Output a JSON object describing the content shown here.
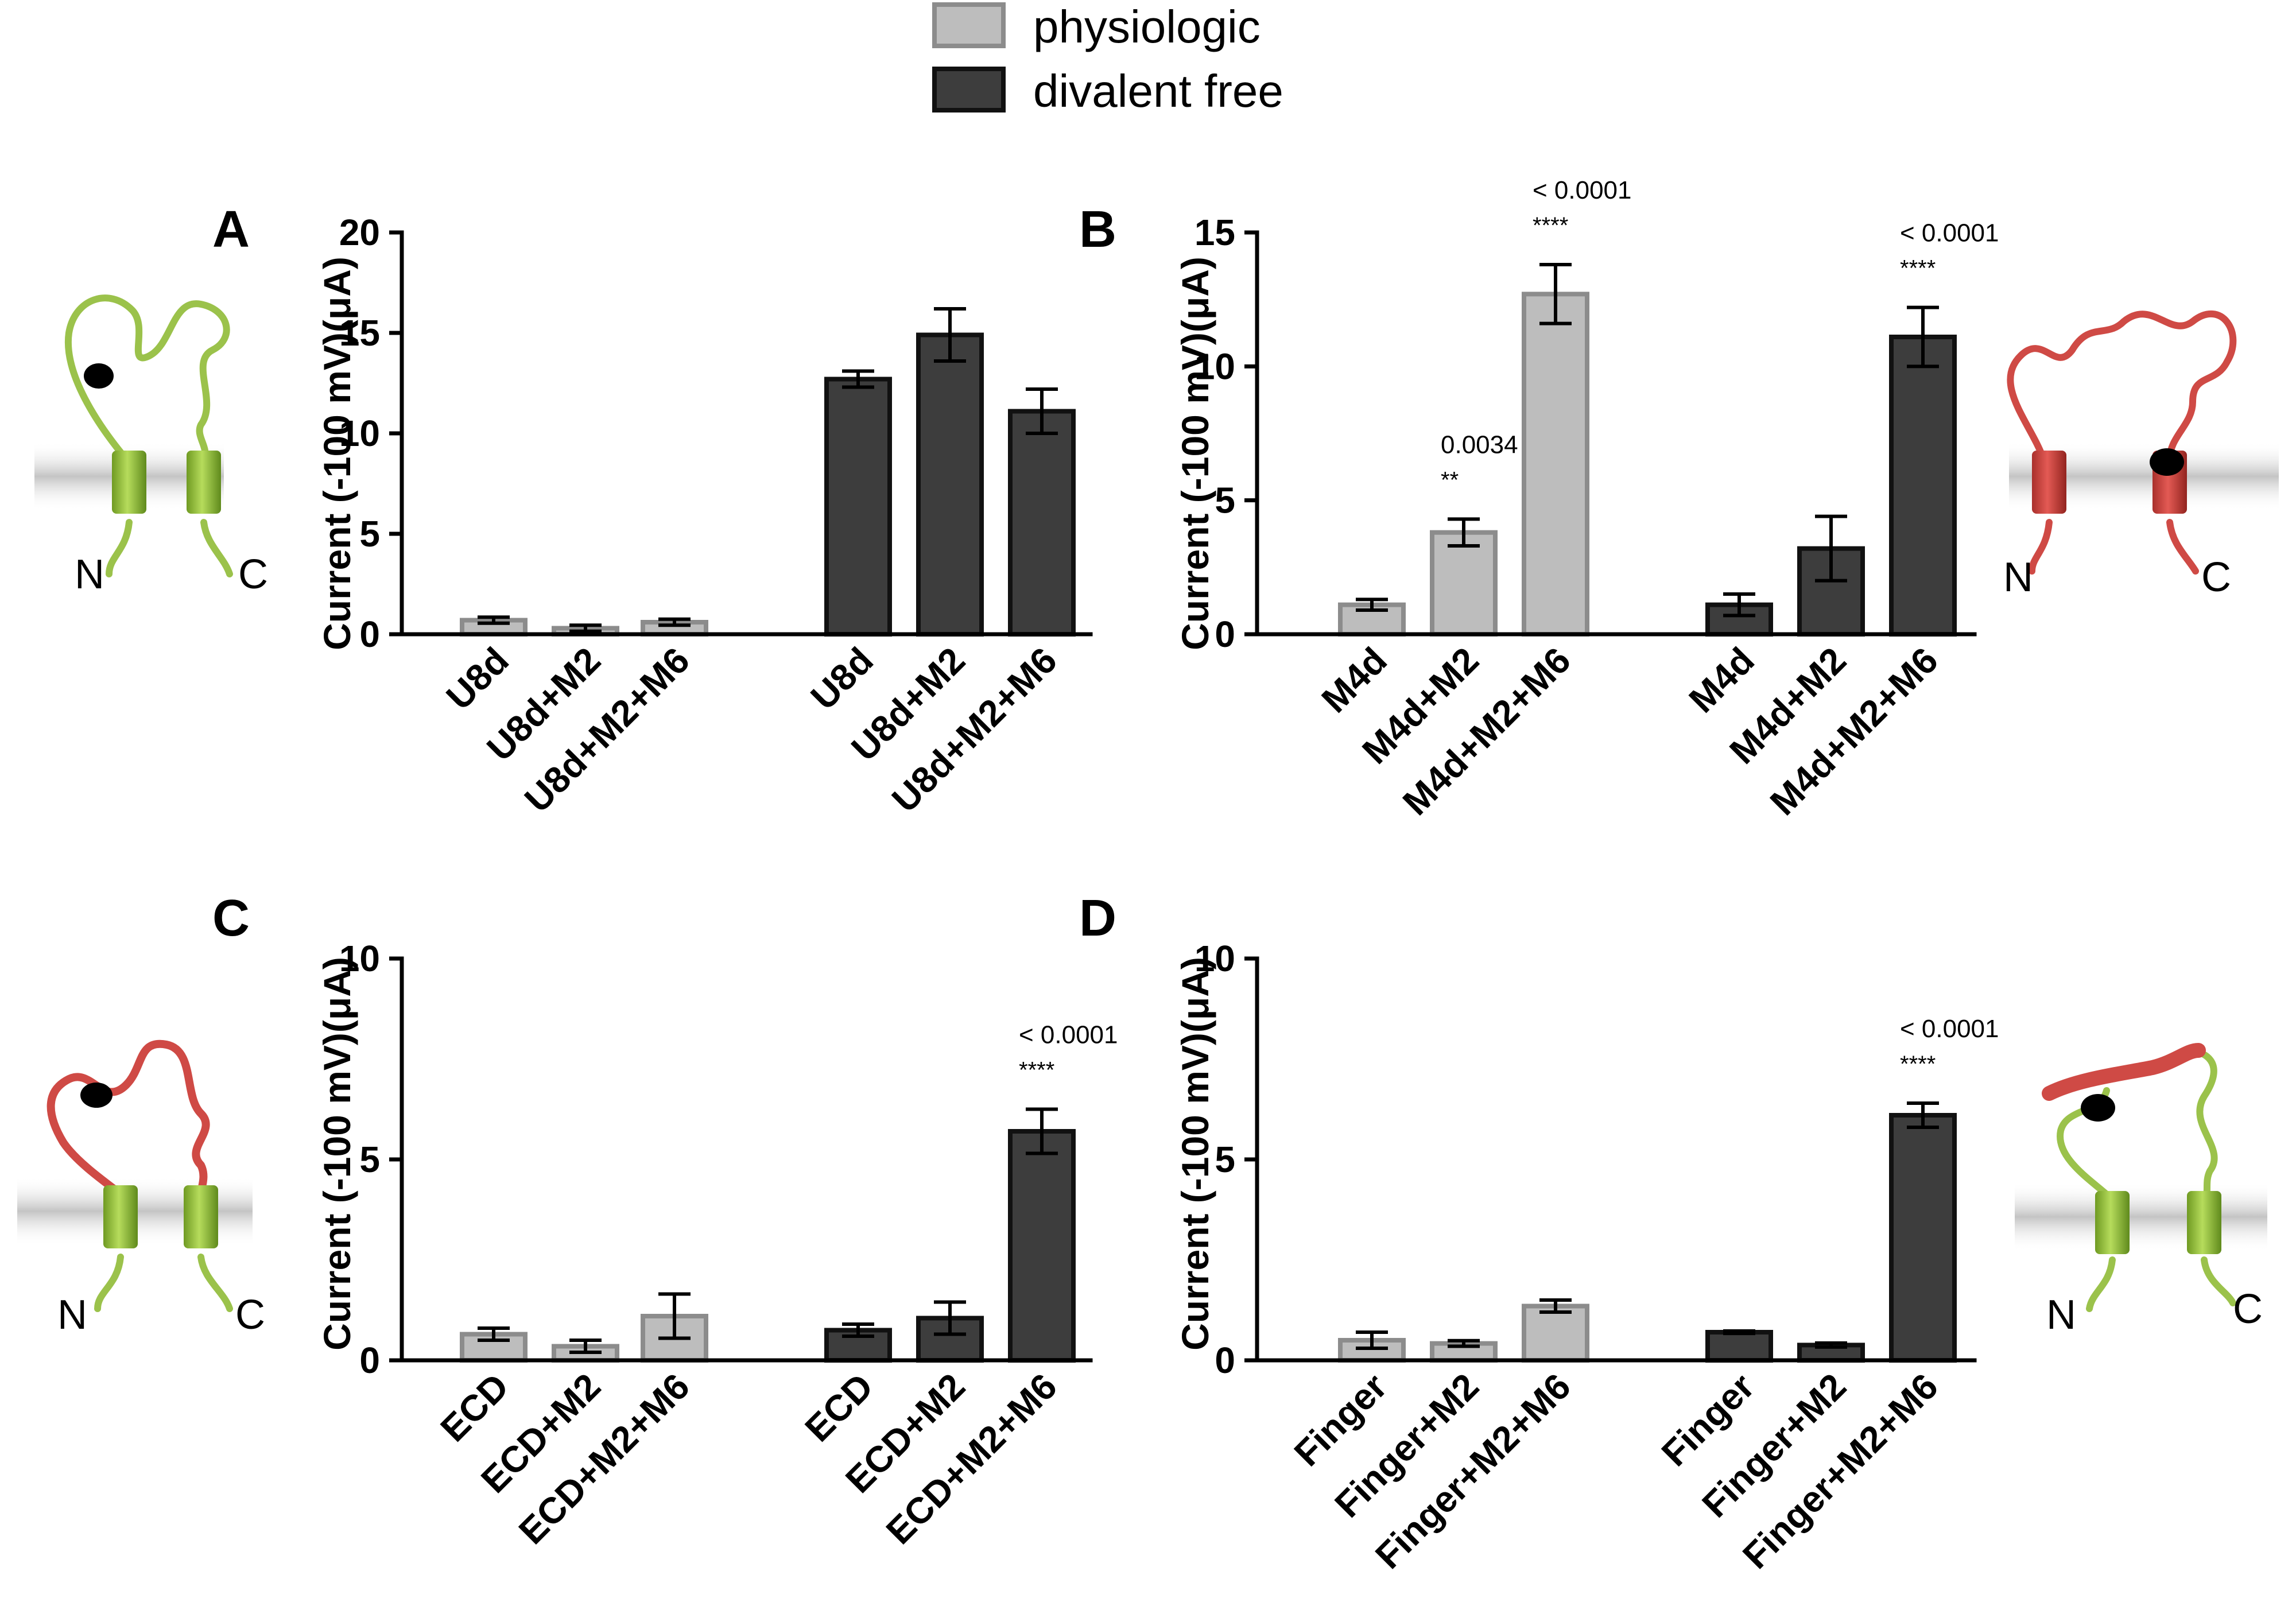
{
  "legend": {
    "items": [
      {
        "label": "physiologic",
        "fill": "#bdbdbd",
        "stroke": "#8c8c8c"
      },
      {
        "label": "divalent free",
        "fill": "#3d3d3d",
        "stroke": "#111111"
      }
    ]
  },
  "icons": [
    {
      "name": "channel-diagram-a-icon",
      "loop_color": "#9bc24b",
      "highlight": "none",
      "n_label": "N",
      "c_label": "C"
    },
    {
      "name": "channel-diagram-b-icon",
      "loop_color": "#cf4a45",
      "highlight": "all",
      "n_label": "N",
      "c_label": "C"
    },
    {
      "name": "channel-diagram-c-icon",
      "loop_color": "#9bc24b",
      "highlight": "ecd",
      "n_label": "N",
      "c_label": "C"
    },
    {
      "name": "channel-diagram-d-icon",
      "loop_color": "#9bc24b",
      "highlight": "finger",
      "n_label": "N",
      "c_label": "C"
    }
  ],
  "colors": {
    "physiologic": "#bdbdbd",
    "divalent_free": "#3d3d3d",
    "green": "#9bc24b",
    "red": "#cf4a45"
  },
  "chart_data": [
    {
      "type": "bar",
      "panel_label": "A",
      "ylabel": "Current (-100 mV)(μA)",
      "ylim": [
        0,
        20
      ],
      "yticks": [
        0,
        5,
        10,
        15,
        20
      ],
      "categories": [
        "U8d",
        "U8d+M2",
        "U8d+M2+M6",
        "U8d",
        "U8d+M2",
        "U8d+M2+M6"
      ],
      "values": [
        0.7,
        0.3,
        0.6,
        12.7,
        14.9,
        11.1
      ],
      "errors": [
        0.15,
        0.15,
        0.15,
        0.4,
        1.3,
        1.1
      ],
      "conditions": [
        "physiologic",
        "physiologic",
        "physiologic",
        "divalent free",
        "divalent free",
        "divalent free"
      ],
      "annotations": []
    },
    {
      "type": "bar",
      "panel_label": "B",
      "ylabel": "Current (-100 mV)(μA)",
      "ylim": [
        0,
        15
      ],
      "yticks": [
        0,
        5,
        10,
        15
      ],
      "categories": [
        "M4d",
        "M4d+M2",
        "M4d+M2+M6",
        "M4d",
        "M4d+M2",
        "M4d+M2+M6"
      ],
      "values": [
        1.1,
        3.8,
        12.7,
        1.1,
        3.2,
        11.1
      ],
      "errors": [
        0.2,
        0.5,
        1.1,
        0.4,
        1.2,
        1.1
      ],
      "conditions": [
        "physiologic",
        "physiologic",
        "physiologic",
        "divalent free",
        "divalent free",
        "divalent free"
      ],
      "annotations": [
        {
          "bar": 1,
          "text": "0.0034",
          "stars": "**"
        },
        {
          "bar": 2,
          "text": "< 0.0001",
          "stars": "****"
        },
        {
          "bar": 5,
          "text": "< 0.0001",
          "stars": "****"
        }
      ]
    },
    {
      "type": "bar",
      "panel_label": "C",
      "ylabel": "Current (-100 mV)(μA)",
      "ylim": [
        0,
        10
      ],
      "yticks": [
        0,
        5,
        10
      ],
      "categories": [
        "ECD",
        "ECD+M2",
        "ECD+M2+M6",
        "ECD",
        "ECD+M2",
        "ECD+M2+M6"
      ],
      "values": [
        0.65,
        0.35,
        1.1,
        0.75,
        1.05,
        5.7
      ],
      "errors": [
        0.15,
        0.15,
        0.55,
        0.15,
        0.4,
        0.55
      ],
      "conditions": [
        "physiologic",
        "physiologic",
        "physiologic",
        "divalent free",
        "divalent free",
        "divalent free"
      ],
      "annotations": [
        {
          "bar": 5,
          "text": "< 0.0001",
          "stars": "****"
        }
      ]
    },
    {
      "type": "bar",
      "panel_label": "D",
      "ylabel": "Current (-100 mV)(μA)",
      "ylim": [
        0,
        10
      ],
      "yticks": [
        0,
        5,
        10
      ],
      "categories": [
        "Finger",
        "Finger+M2",
        "Finger+M2+M6",
        "Finger",
        "Finger+M2",
        "Finger+M2+M6"
      ],
      "values": [
        0.5,
        0.42,
        1.35,
        0.7,
        0.38,
        6.1
      ],
      "errors": [
        0.2,
        0.07,
        0.15,
        0.03,
        0.05,
        0.3
      ],
      "conditions": [
        "physiologic",
        "physiologic",
        "physiologic",
        "divalent free",
        "divalent free",
        "divalent free"
      ],
      "annotations": [
        {
          "bar": 5,
          "text": "< 0.0001",
          "stars": "****"
        }
      ]
    }
  ]
}
